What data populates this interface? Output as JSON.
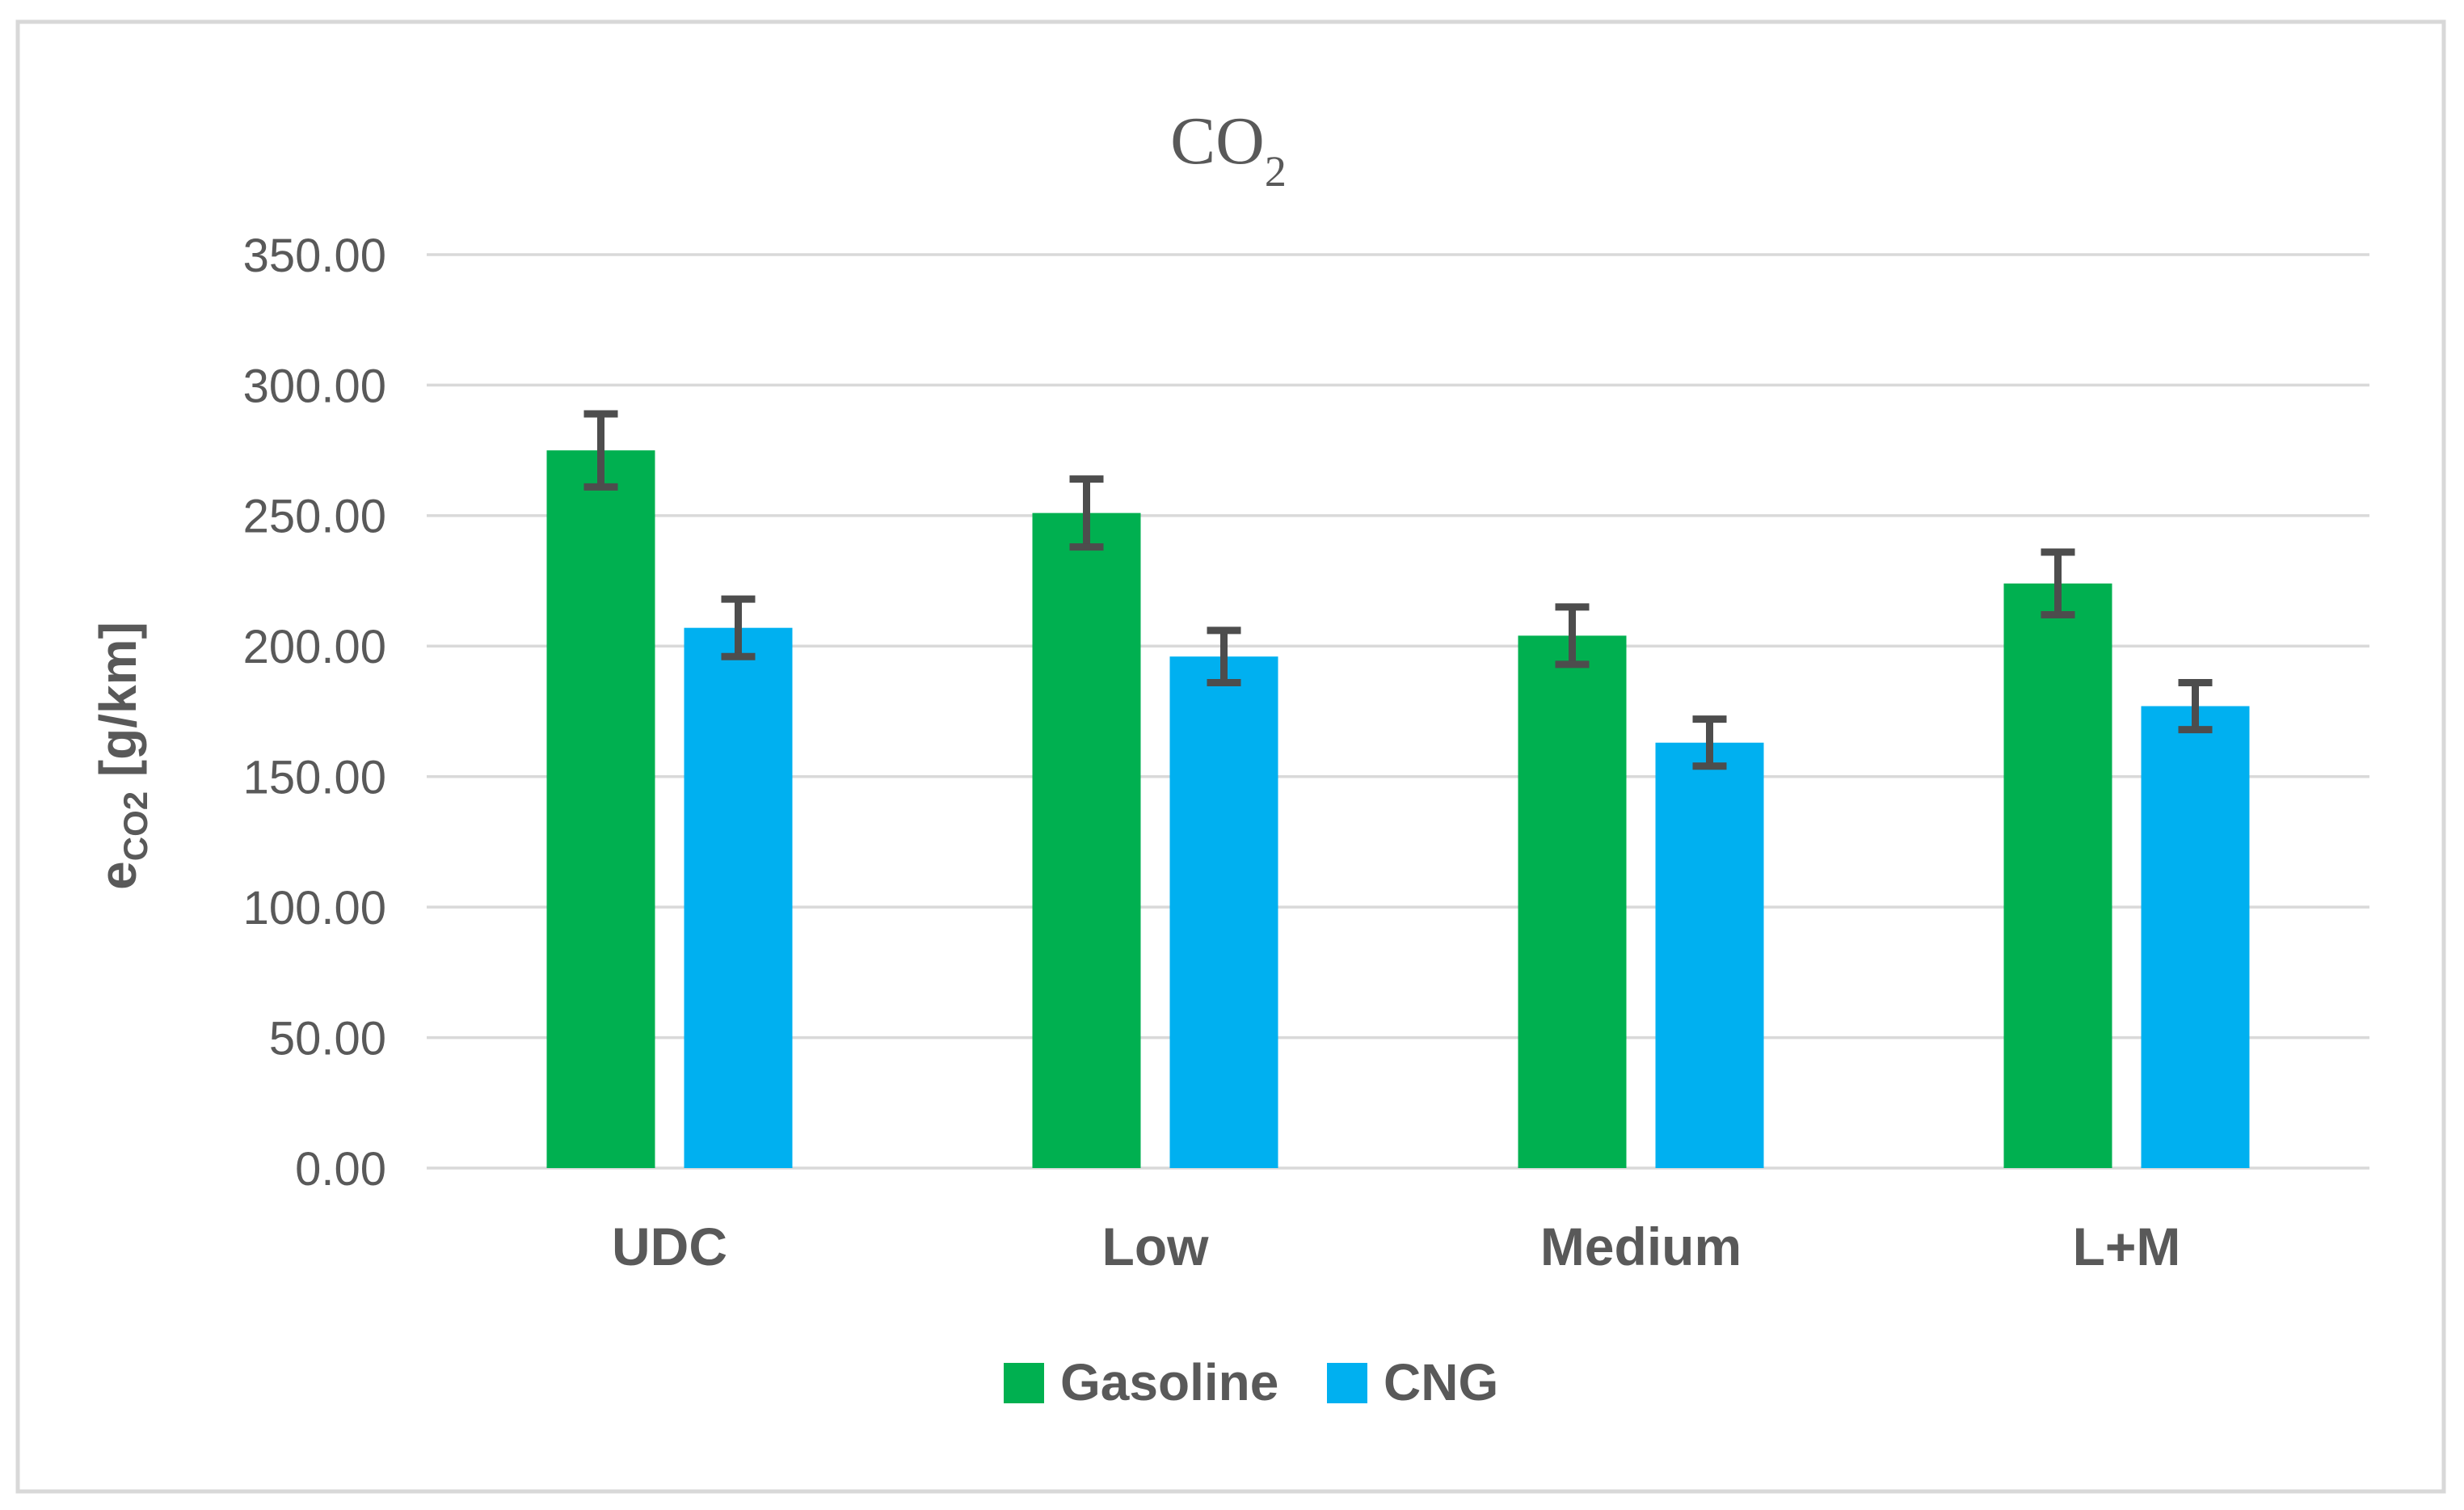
{
  "figure": {
    "frame_color": "#D8D8D8",
    "background": "#FFFFFF"
  },
  "chart_data": {
    "type": "bar",
    "title": "CO2",
    "title_main": "CO",
    "title_subscript": "2",
    "ylabel": "eCO2 [g/km]",
    "ylabel_parts": {
      "base": "e",
      "subscript": "CO2",
      "rest": " [g/km]"
    },
    "xlabel": "",
    "categories": [
      "UDC",
      "Low",
      "Medium",
      "L+M"
    ],
    "series": [
      {
        "name": "Gasoline",
        "color": "#00B050",
        "values": [
          275,
          251,
          204,
          224
        ],
        "errors": [
          14,
          13,
          11,
          12
        ]
      },
      {
        "name": "CNG",
        "color": "#00B0F0",
        "values": [
          207,
          196,
          163,
          177
        ],
        "errors": [
          11,
          10,
          9,
          9
        ]
      }
    ],
    "ylim": [
      0,
      350
    ],
    "ytick_step": 50,
    "ytick_labels": [
      "0.00",
      "50.00",
      "100.00",
      "150.00",
      "200.00",
      "250.00",
      "300.00",
      "350.00"
    ],
    "grid": true,
    "grid_color": "#D9D9D9",
    "legend_position": "bottom",
    "legend": [
      "Gasoline",
      "CNG"
    ],
    "error_bar_color": "#4D4D4D",
    "tick_text_color": "#595959",
    "label_text_color": "#595959",
    "title_color": "#595959"
  }
}
